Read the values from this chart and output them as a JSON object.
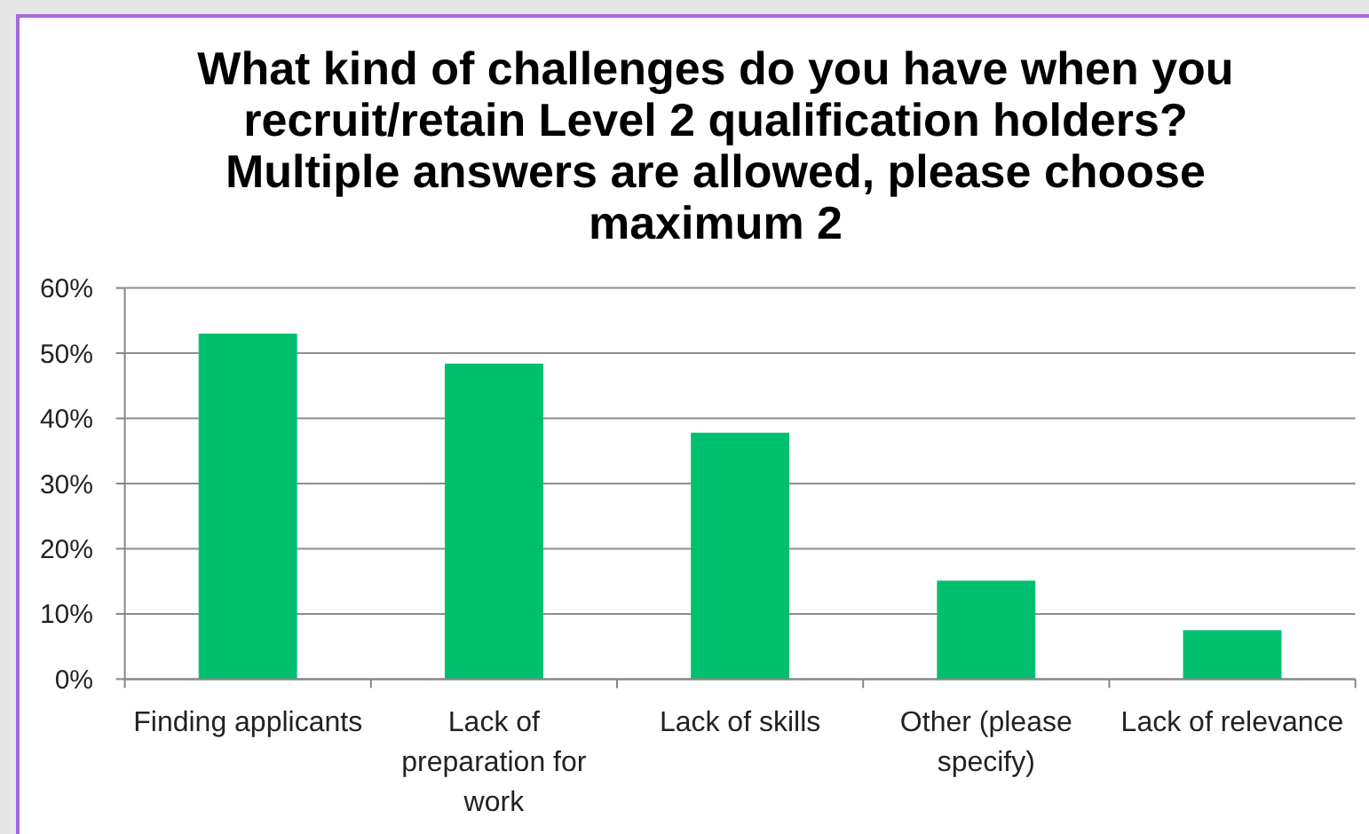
{
  "chart_data": {
    "type": "bar",
    "title": "What kind of challenges do you have when you recruit/retain Level 2 qualification holders? Multiple answers are allowed, please choose maximum 2",
    "categories": [
      "Finding applicants",
      "Lack of preparation for work",
      "Lack of skills",
      "Other (please specify)",
      "Lack of relevance"
    ],
    "values": [
      53,
      48.4,
      37.8,
      15.1,
      7.5
    ],
    "color": "#00c070",
    "ylim": [
      0,
      60
    ],
    "yticks": [
      {
        "value": 0,
        "label": "0%"
      },
      {
        "value": 10,
        "label": "10%"
      },
      {
        "value": 20,
        "label": "20%"
      },
      {
        "value": 30,
        "label": "30%"
      },
      {
        "value": 40,
        "label": "40%"
      },
      {
        "value": 50,
        "label": "50%"
      },
      {
        "value": 60,
        "label": "60%"
      }
    ],
    "grid": "y"
  }
}
